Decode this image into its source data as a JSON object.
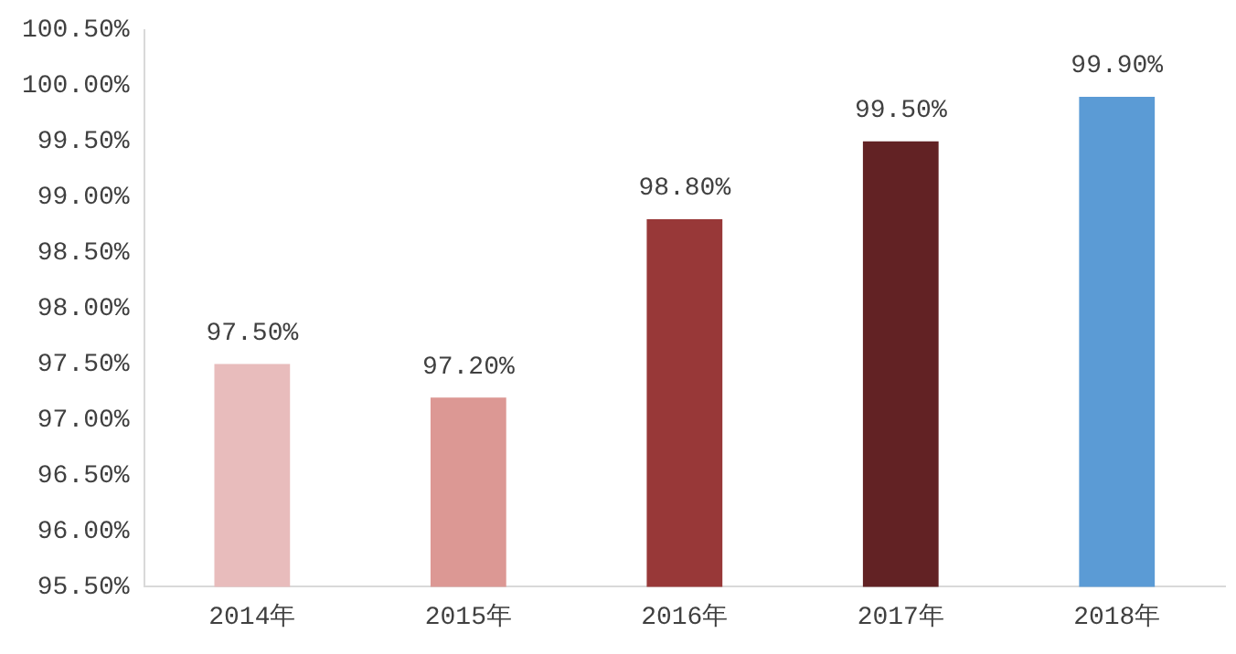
{
  "chart_data": {
    "type": "bar",
    "categories": [
      "2014年",
      "2015年",
      "2016年",
      "2017年",
      "2018年"
    ],
    "values": [
      97.5,
      97.2,
      98.8,
      99.5,
      99.9
    ],
    "colors": [
      "#e8bcbc",
      "#dc9894",
      "#983838",
      "#622224",
      "#5b9bd5"
    ],
    "value_labels": [
      "97.50%",
      "97.20%",
      "98.80%",
      "99.50%",
      "99.90%"
    ],
    "ylim": [
      95.5,
      100.5
    ],
    "yticks": [
      {
        "value": 95.5,
        "label": "95.50%"
      },
      {
        "value": 96,
        "label": "96.00%"
      },
      {
        "value": 96.5,
        "label": "96.50%"
      },
      {
        "value": 97,
        "label": "97.00%"
      },
      {
        "value": 97.5,
        "label": "97.50%"
      },
      {
        "value": 98,
        "label": "98.00%"
      },
      {
        "value": 98.5,
        "label": "98.50%"
      },
      {
        "value": 99,
        "label": "99.00%"
      },
      {
        "value": 99.5,
        "label": "99.50%"
      },
      {
        "value": 100,
        "label": "100.00%"
      },
      {
        "value": 100.5,
        "label": "100.50%"
      }
    ],
    "grid": false,
    "legend": false
  }
}
